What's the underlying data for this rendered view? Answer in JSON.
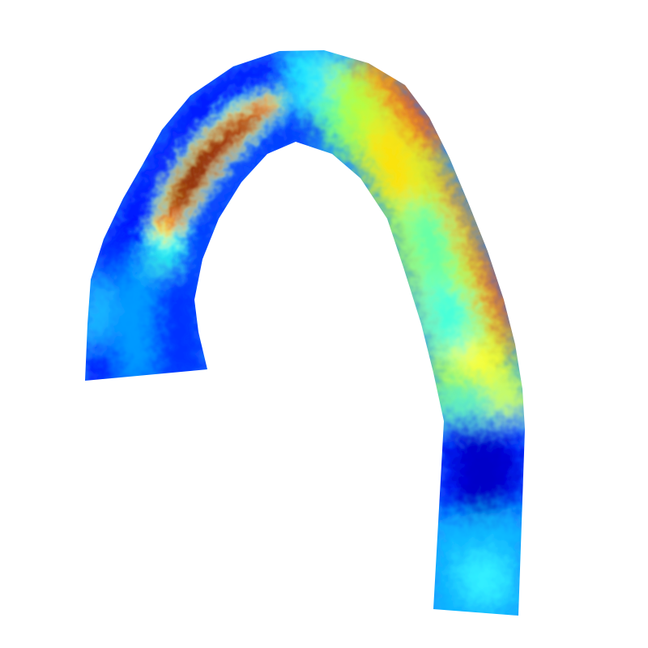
{
  "figure": {
    "kind": "scalar-field-surface",
    "colormap": "jet",
    "colormap_stops": [
      "#00007f",
      "#0000ff",
      "#0080ff",
      "#00ffff",
      "#80ff80",
      "#ffff00",
      "#ff8000",
      "#ff0000",
      "#7f0000"
    ],
    "background": "#ffffff"
  }
}
